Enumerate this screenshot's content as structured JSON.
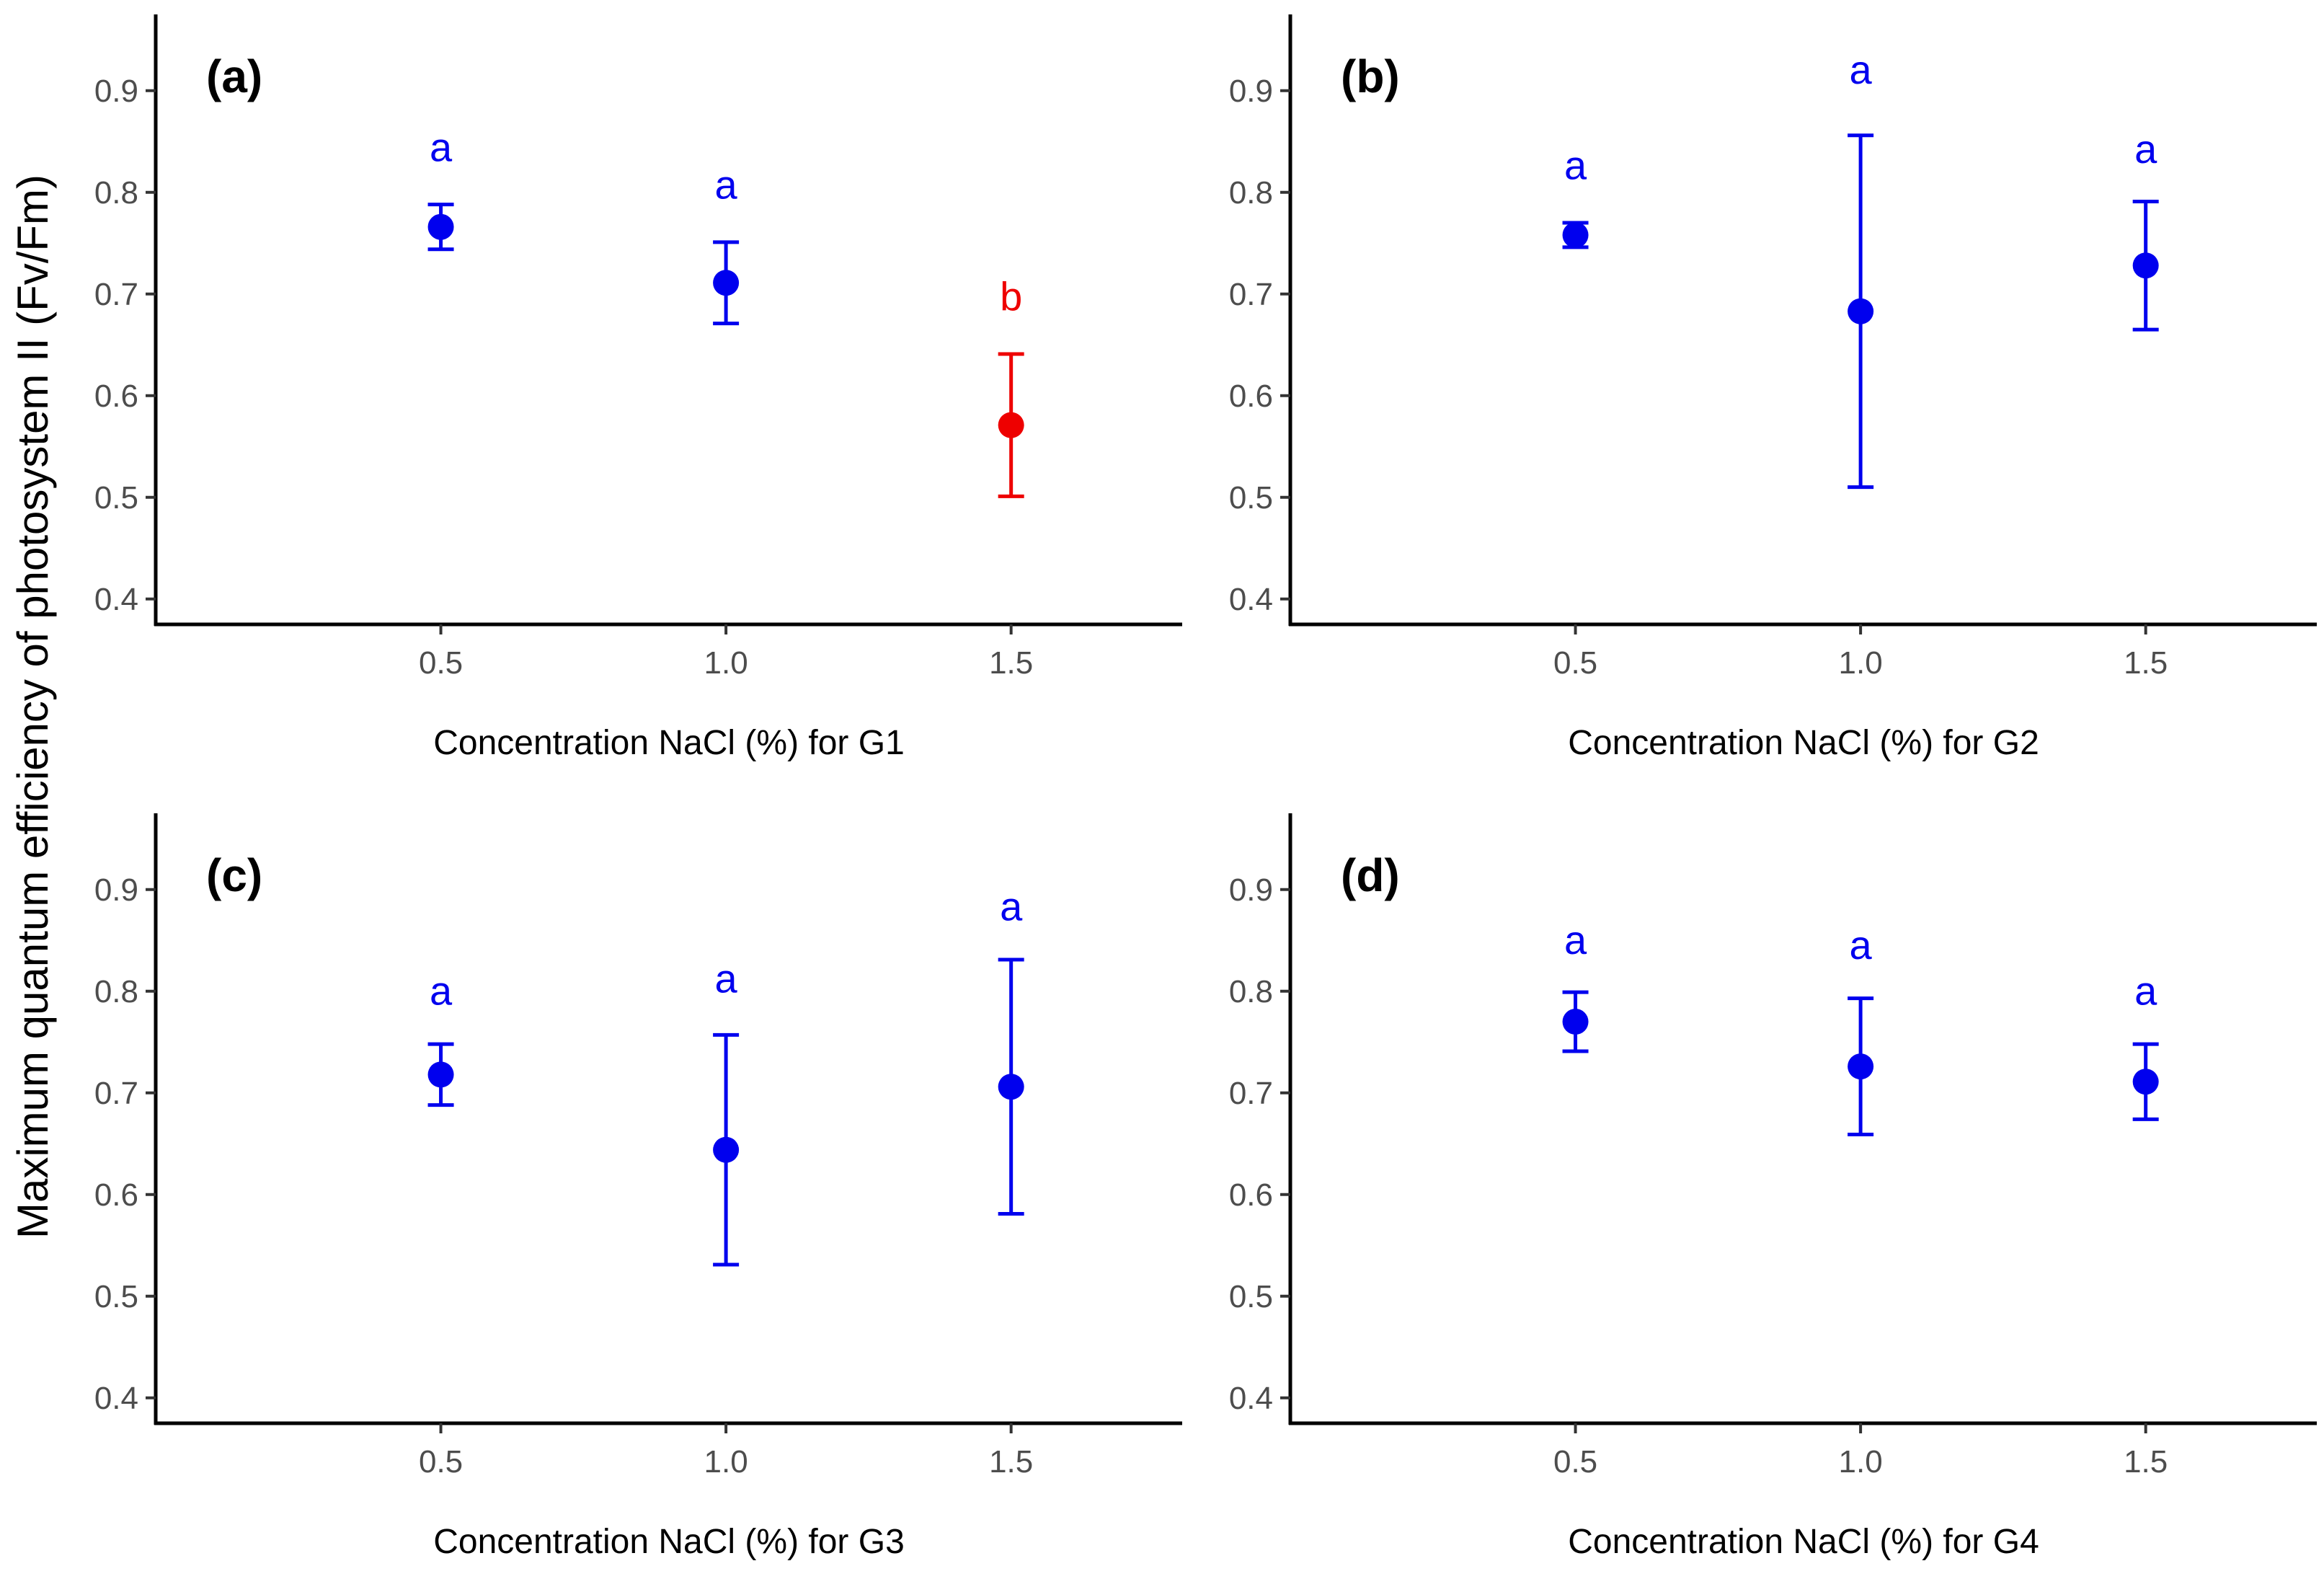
{
  "y_axis_title": "Maximum quantum efficiency of photosystem II (Fv/Fm)",
  "colors": {
    "significant_a": "#0000ee",
    "significant_b": "#ee0000",
    "axis": "#000000",
    "tick_text": "#4d4d4d"
  },
  "chart_data": [
    {
      "type": "scatter",
      "panel": "(a)",
      "xlabel": "Concentration NaCl (%) for G1",
      "ylabel": "Maximum quantum efficiency of photosystem II (Fv/Fm)",
      "xlim": [
        0,
        1.8
      ],
      "ylim": [
        0.375,
        0.975
      ],
      "x_ticks": [
        0.5,
        1.0,
        1.5
      ],
      "x_tick_labels": [
        "0.5",
        "1.0",
        "1.5"
      ],
      "y_ticks": [
        0.4,
        0.5,
        0.6,
        0.7,
        0.8,
        0.9
      ],
      "y_tick_labels": [
        "0.4",
        "0.5",
        "0.6",
        "0.7",
        "0.8",
        "0.9"
      ],
      "points": [
        {
          "x": 0.5,
          "mean": 0.766,
          "lower": 0.744,
          "upper": 0.788,
          "group": "a",
          "label_y": 0.845,
          "color": "#0000ee"
        },
        {
          "x": 1.0,
          "mean": 0.711,
          "lower": 0.671,
          "upper": 0.751,
          "group": "a",
          "label_y": 0.808,
          "color": "#0000ee"
        },
        {
          "x": 1.5,
          "mean": 0.571,
          "lower": 0.501,
          "upper": 0.641,
          "group": "b",
          "label_y": 0.698,
          "color": "#ee0000"
        }
      ]
    },
    {
      "type": "scatter",
      "panel": "(b)",
      "xlabel": "Concentration NaCl (%) for G2",
      "ylabel": "Maximum quantum efficiency of photosystem II (Fv/Fm)",
      "xlim": [
        0,
        1.8
      ],
      "ylim": [
        0.375,
        0.975
      ],
      "x_ticks": [
        0.5,
        1.0,
        1.5
      ],
      "x_tick_labels": [
        "0.5",
        "1.0",
        "1.5"
      ],
      "y_ticks": [
        0.4,
        0.5,
        0.6,
        0.7,
        0.8,
        0.9
      ],
      "y_tick_labels": [
        "0.4",
        "0.5",
        "0.6",
        "0.7",
        "0.8",
        "0.9"
      ],
      "points": [
        {
          "x": 0.5,
          "mean": 0.758,
          "lower": 0.746,
          "upper": 0.77,
          "group": "a",
          "label_y": 0.827,
          "color": "#0000ee"
        },
        {
          "x": 1.0,
          "mean": 0.683,
          "lower": 0.51,
          "upper": 0.856,
          "group": "a",
          "label_y": 0.921,
          "color": "#0000ee"
        },
        {
          "x": 1.5,
          "mean": 0.728,
          "lower": 0.665,
          "upper": 0.791,
          "group": "a",
          "label_y": 0.843,
          "color": "#0000ee"
        }
      ]
    },
    {
      "type": "scatter",
      "panel": "(c)",
      "xlabel": "Concentration NaCl (%) for G3",
      "ylabel": "Maximum quantum efficiency of photosystem II (Fv/Fm)",
      "xlim": [
        0,
        1.8
      ],
      "ylim": [
        0.375,
        0.975
      ],
      "x_ticks": [
        0.5,
        1.0,
        1.5
      ],
      "x_tick_labels": [
        "0.5",
        "1.0",
        "1.5"
      ],
      "y_ticks": [
        0.4,
        0.5,
        0.6,
        0.7,
        0.8,
        0.9
      ],
      "y_tick_labels": [
        "0.4",
        "0.5",
        "0.6",
        "0.7",
        "0.8",
        "0.9"
      ],
      "points": [
        {
          "x": 0.5,
          "mean": 0.718,
          "lower": 0.688,
          "upper": 0.748,
          "group": "a",
          "label_y": 0.801,
          "color": "#0000ee"
        },
        {
          "x": 1.0,
          "mean": 0.644,
          "lower": 0.531,
          "upper": 0.757,
          "group": "a",
          "label_y": 0.813,
          "color": "#0000ee"
        },
        {
          "x": 1.5,
          "mean": 0.706,
          "lower": 0.581,
          "upper": 0.831,
          "group": "a",
          "label_y": 0.884,
          "color": "#0000ee"
        }
      ]
    },
    {
      "type": "scatter",
      "panel": "(d)",
      "xlabel": "Concentration NaCl (%) for G4",
      "ylabel": "Maximum quantum efficiency of photosystem II (Fv/Fm)",
      "xlim": [
        0,
        1.8
      ],
      "ylim": [
        0.375,
        0.975
      ],
      "x_ticks": [
        0.5,
        1.0,
        1.5
      ],
      "x_tick_labels": [
        "0.5",
        "1.0",
        "1.5"
      ],
      "y_ticks": [
        0.4,
        0.5,
        0.6,
        0.7,
        0.8,
        0.9
      ],
      "y_tick_labels": [
        "0.4",
        "0.5",
        "0.6",
        "0.7",
        "0.8",
        "0.9"
      ],
      "points": [
        {
          "x": 0.5,
          "mean": 0.77,
          "lower": 0.741,
          "upper": 0.799,
          "group": "a",
          "label_y": 0.851,
          "color": "#0000ee"
        },
        {
          "x": 1.0,
          "mean": 0.726,
          "lower": 0.659,
          "upper": 0.793,
          "group": "a",
          "label_y": 0.846,
          "color": "#0000ee"
        },
        {
          "x": 1.5,
          "mean": 0.711,
          "lower": 0.674,
          "upper": 0.748,
          "group": "a",
          "label_y": 0.801,
          "color": "#0000ee"
        }
      ]
    }
  ]
}
